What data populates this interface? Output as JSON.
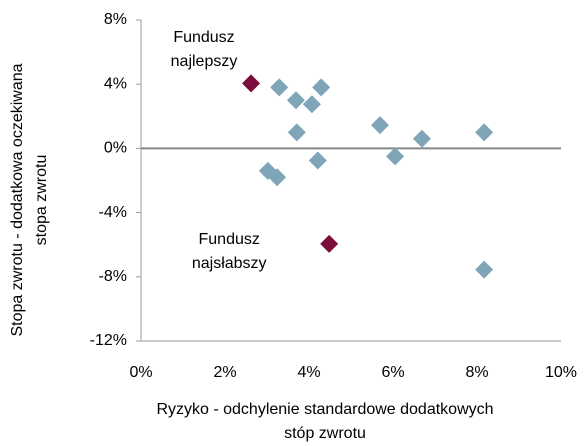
{
  "chart_data": {
    "type": "scatter",
    "x_label": [
      "Ryzyko - odchylenie standardowe dodatkowych",
      "stóp zwrotu"
    ],
    "y_label": [
      "Stopa zwrotu - dodatkowa oczekiwana",
      "stopa zwrotu"
    ],
    "xlim": [
      0,
      10
    ],
    "xticks": [
      {
        "value": 0,
        "label": "0%"
      },
      {
        "value": 2,
        "label": "2%"
      },
      {
        "value": 4,
        "label": "4%"
      },
      {
        "value": 6,
        "label": "6%"
      },
      {
        "value": 8,
        "label": "8%"
      },
      {
        "value": 10,
        "label": "10%"
      }
    ],
    "ylim": [
      -12,
      8
    ],
    "yticks": [
      {
        "value": -12,
        "label": "-12%"
      },
      {
        "value": -8,
        "label": "-8%"
      },
      {
        "value": -4,
        "label": "-4%"
      },
      {
        "value": 0,
        "label": "0%"
      },
      {
        "value": 4,
        "label": "4%"
      },
      {
        "value": 8,
        "label": "8%"
      }
    ],
    "series": [
      {
        "color": "#7ea6b8",
        "x": [
          3.29,
          4.29,
          3.69,
          4.07,
          3.71,
          5.69,
          6.69,
          8.17,
          6.05,
          4.21,
          3.02,
          3.24,
          8.17
        ],
        "y": [
          3.8,
          3.8,
          3.0,
          2.75,
          1.0,
          1.45,
          0.6,
          1.0,
          -0.5,
          -0.75,
          -1.4,
          -1.8,
          -7.55
        ]
      },
      {
        "color": "#7b0d3c",
        "x": [
          2.62,
          4.48
        ],
        "y": [
          4.05,
          -5.95
        ]
      }
    ],
    "annotations": [
      {
        "lines": [
          "Fundusz",
          "najlepszy"
        ],
        "x": 1.5,
        "y": 6.9
      },
      {
        "lines": [
          "Fundusz",
          "najsłabszy"
        ],
        "x": 2.1,
        "y": -5.7
      }
    ]
  }
}
